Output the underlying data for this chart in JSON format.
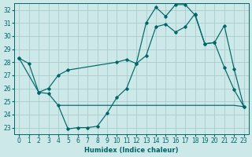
{
  "xlabel": "Humidex (Indice chaleur)",
  "xlim": [
    -0.5,
    23.5
  ],
  "ylim": [
    22.5,
    32.5
  ],
  "x_ticks": [
    0,
    1,
    2,
    3,
    4,
    5,
    6,
    7,
    8,
    9,
    10,
    11,
    12,
    13,
    14,
    15,
    16,
    17,
    18,
    19,
    20,
    21,
    22,
    23
  ],
  "y_ticks": [
    23,
    24,
    25,
    26,
    27,
    28,
    29,
    30,
    31,
    32
  ],
  "bg_color": "#cce8e8",
  "grid_color": "#aacccc",
  "line_color": "#006666",
  "line1_x": [
    0,
    1,
    2,
    3,
    4,
    5,
    6,
    7,
    8,
    9,
    10,
    11,
    12,
    13,
    14,
    15,
    16,
    17,
    18,
    19,
    20,
    21,
    22,
    23
  ],
  "line1_y": [
    28.3,
    27.9,
    25.7,
    25.6,
    24.7,
    22.9,
    23.0,
    23.0,
    23.1,
    24.1,
    25.3,
    26.0,
    27.9,
    31.0,
    32.2,
    31.5,
    32.4,
    32.4,
    31.6,
    29.4,
    29.5,
    27.6,
    25.9,
    24.6
  ],
  "line2_x": [
    0,
    2,
    3,
    4,
    5,
    10,
    11,
    12,
    13,
    14,
    15,
    16,
    17,
    18,
    19,
    20,
    21,
    22,
    23
  ],
  "line2_y": [
    28.3,
    25.7,
    26.0,
    27.0,
    27.4,
    28.0,
    28.2,
    27.9,
    28.5,
    30.7,
    30.9,
    30.3,
    30.7,
    31.7,
    29.4,
    29.5,
    30.8,
    27.5,
    24.6
  ],
  "line3_x": [
    4,
    5,
    6,
    7,
    8,
    9,
    10,
    11,
    12,
    13,
    14,
    15,
    16,
    17,
    18,
    19,
    20,
    21,
    22,
    23
  ],
  "line3_y": [
    24.7,
    24.7,
    24.7,
    24.7,
    24.7,
    24.7,
    24.7,
    24.7,
    24.7,
    24.7,
    24.7,
    24.7,
    24.7,
    24.7,
    24.7,
    24.7,
    24.7,
    24.7,
    24.7,
    24.6
  ]
}
